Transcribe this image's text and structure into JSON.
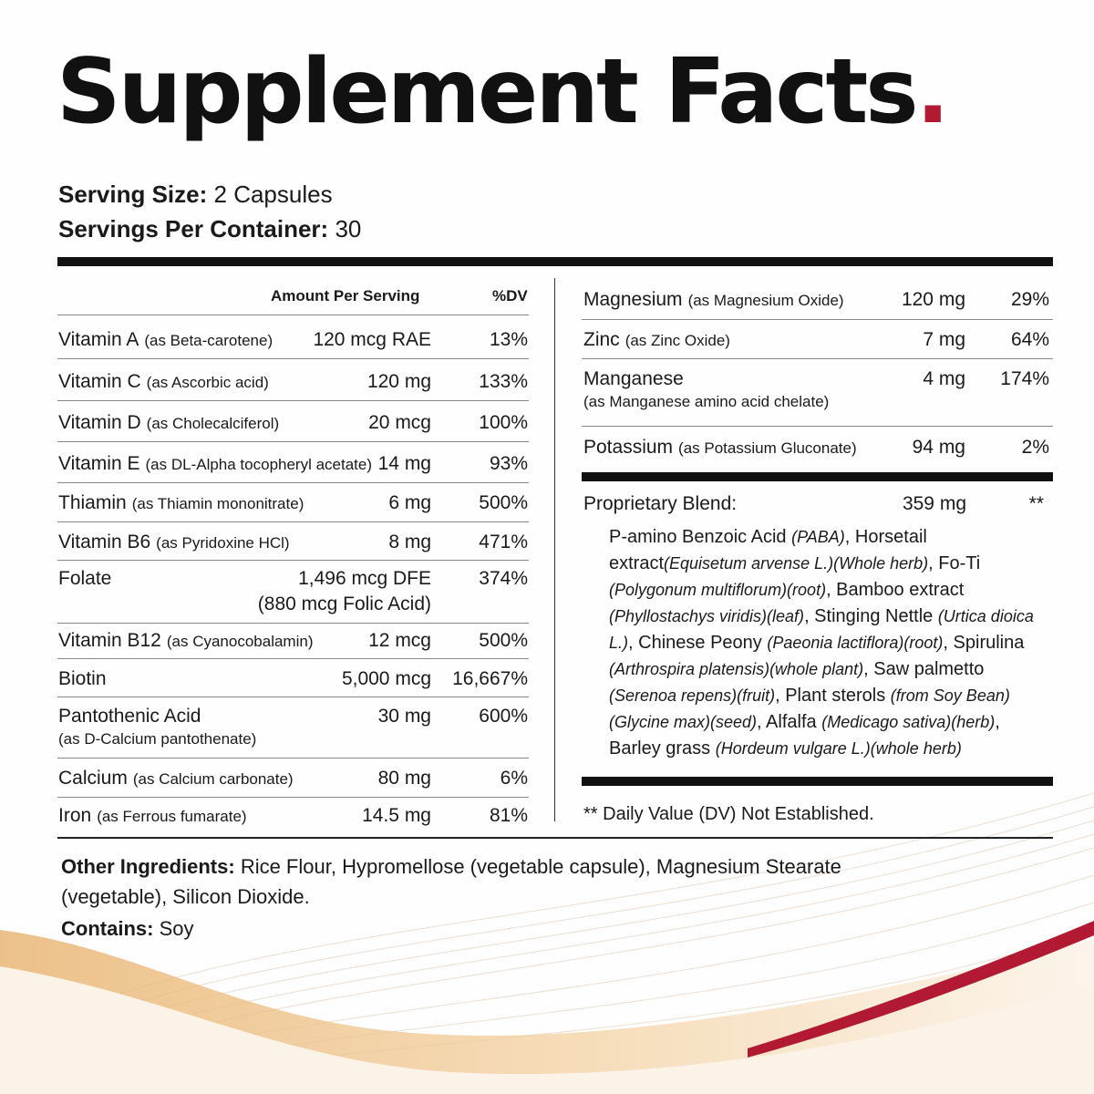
{
  "title": "Supplement Facts",
  "title_dot": ".",
  "serving_size_label": "Serving Size:",
  "serving_size_value": "2 Capsules",
  "servings_per_label": "Servings Per Container:",
  "servings_per_value": "30",
  "header_amount": "Amount Per Serving",
  "header_dv": "%DV",
  "left_rows": [
    {
      "name": "Vitamin A",
      "sub": "(as Beta-carotene)",
      "amount": "120 mcg RAE",
      "dv": "13%"
    },
    {
      "name": "Vitamin C",
      "sub": "(as Ascorbic acid)",
      "amount": "120 mg",
      "dv": "133%"
    },
    {
      "name": "Vitamin D",
      "sub": "(as Cholecalciferol)",
      "amount": "20 mcg",
      "dv": "100%"
    },
    {
      "name": "Vitamin E",
      "sub": "(as DL-Alpha tocopheryl acetate)",
      "amount": "14 mg",
      "dv": "93%"
    },
    {
      "name": "Thiamin",
      "sub": "(as Thiamin mononitrate)",
      "amount": "6 mg",
      "dv": "500%"
    },
    {
      "name": "Vitamin B6",
      "sub": "(as Pyridoxine HCl)",
      "amount": "8 mg",
      "dv": "471%"
    },
    {
      "name": "Folate",
      "sub": "",
      "amount": "1,496 mcg DFE",
      "amount2": "(880 mcg Folic Acid)",
      "dv": "374%"
    },
    {
      "name": "Vitamin B12",
      "sub": "(as Cyanocobalamin)",
      "amount": "12 mcg",
      "dv": "500%"
    },
    {
      "name": "Biotin",
      "sub": "",
      "amount": "5,000 mcg",
      "dv": "16,667%"
    },
    {
      "name": "Pantothenic Acid",
      "sub2": "(as D-Calcium pantothenate)",
      "amount": "30 mg",
      "dv": "600%"
    },
    {
      "name": "Calcium",
      "sub": "(as Calcium carbonate)",
      "amount": "80 mg",
      "dv": "6%"
    },
    {
      "name": "Iron",
      "sub": "(as Ferrous fumarate)",
      "amount": "14.5 mg",
      "dv": "81%"
    }
  ],
  "right_rows": [
    {
      "name": "Magnesium",
      "sub": "(as Magnesium Oxide)",
      "amount": "120 mg",
      "dv": "29%"
    },
    {
      "name": "Zinc",
      "sub": "(as Zinc Oxide)",
      "amount": "7 mg",
      "dv": "64%"
    },
    {
      "name": "Manganese",
      "sub2": "(as Manganese amino acid chelate)",
      "amount": "4 mg",
      "dv": "174%"
    },
    {
      "name": "Potassium",
      "sub": "(as Potassium Gluconate)",
      "amount": "94 mg",
      "dv": "2%"
    }
  ],
  "blend": {
    "name": "Proprietary Blend:",
    "amount": "359 mg",
    "dv": "**",
    "parts": [
      [
        "P-amino Benzoic Acid ",
        "(PABA)",
        ", Horsetail extract"
      ],
      [
        "",
        "(Equisetum arvense L.)(Whole herb)",
        ", Fo-Ti "
      ],
      [
        "",
        "(Polygonum multiflorum)(root)",
        ", Bamboo extract "
      ],
      [
        "",
        "(Phyllostachys viridis)(leaf)",
        ", Stinging Nettle "
      ],
      [
        "",
        "(Urtica dioica L.)",
        ", Chinese Peony "
      ],
      [
        "",
        "(Paeonia lactiflora)(root)",
        ", Spirulina "
      ],
      [
        "",
        "(Arthrospira platensis)(whole plant)",
        ", Saw palmetto "
      ],
      [
        "",
        "(Serenoa repens)(fruit)",
        ", Plant sterols "
      ],
      [
        "",
        "(from Soy Bean)(Glycine max)(seed)",
        ", Alfalfa "
      ],
      [
        "",
        "(Medicago sativa)(herb)",
        ", Barley grass "
      ],
      [
        "",
        "(Hordeum vulgare L.)(whole herb)",
        ""
      ]
    ]
  },
  "dv_note": "** Daily Value (DV) Not Established.",
  "other_label": "Other Ingredients:",
  "other_line1": "Rice Flour, Hypromellose (vegetable capsule), Magnesium Stearate",
  "other_line2": "(vegetable), Silicon Dioxide.",
  "contains_label": "Contains:",
  "contains_value": "Soy",
  "colors": {
    "accent": "#b11a32",
    "gold": "#e0a55e",
    "ink": "#111111"
  }
}
